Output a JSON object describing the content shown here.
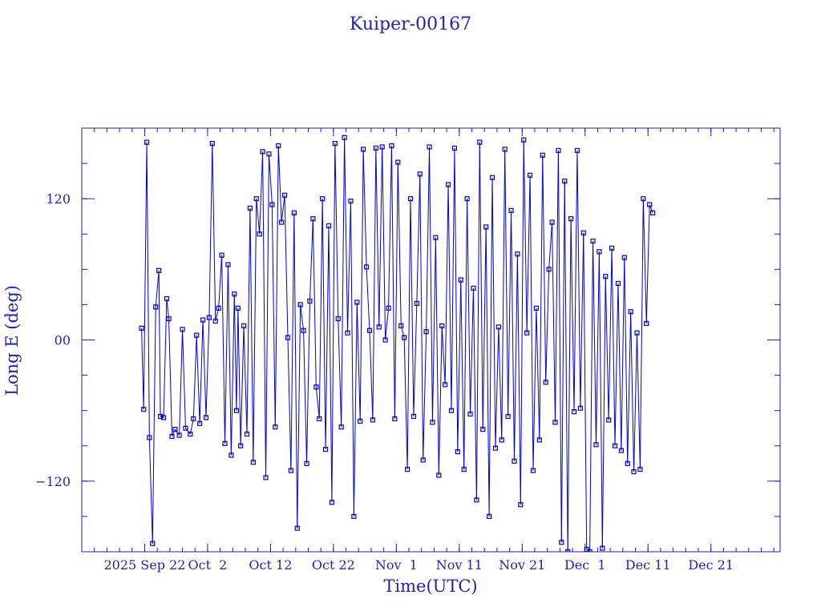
{
  "chart_data": {
    "type": "line",
    "title": "Kuiper-00167",
    "xlabel": "Time(UTC)",
    "ylabel": "Long E (deg)",
    "colors": {
      "axis": "#1f1fbf",
      "series": "#0000cc"
    },
    "x_axis": {
      "unit": "date",
      "range": [
        "2025-09-12",
        "2026-01-01"
      ],
      "major_ticks": [
        {
          "date": "2025-09-22",
          "label": "2025 Sep 22"
        },
        {
          "date": "2025-10-02",
          "label": "Oct  2"
        },
        {
          "date": "2025-10-12",
          "label": "Oct 12"
        },
        {
          "date": "2025-10-22",
          "label": "Oct 22"
        },
        {
          "date": "2025-11-01",
          "label": "Nov  1"
        },
        {
          "date": "2025-11-11",
          "label": "Nov 11"
        },
        {
          "date": "2025-11-21",
          "label": "Nov 21"
        },
        {
          "date": "2025-12-01",
          "label": "Dec  1"
        },
        {
          "date": "2025-12-11",
          "label": "Dec 11"
        },
        {
          "date": "2025-12-21",
          "label": "Dec 21"
        }
      ]
    },
    "y_axis": {
      "range": [
        -180,
        180
      ],
      "major_ticks": [
        {
          "value": 120,
          "label": "120"
        },
        {
          "value": 0,
          "label": "00"
        },
        {
          "value": -120,
          "label": "−120"
        }
      ],
      "minor_step": 30
    },
    "series": [
      {
        "values_note": "longitude wraps at ±180",
        "points": [
          [
            "2025-09-21T12:00",
            10
          ],
          [
            "2025-09-21T20:00",
            -59
          ],
          [
            "2025-09-22T08:00",
            168
          ],
          [
            "2025-09-22T18:00",
            -83
          ],
          [
            "2025-09-23T06:00",
            -173
          ],
          [
            "2025-09-23T18:00",
            28
          ],
          [
            "2025-09-24T06:00",
            59
          ],
          [
            "2025-09-24T12:00",
            -65
          ],
          [
            "2025-09-25T00:00",
            -66
          ],
          [
            "2025-09-25T12:00",
            35
          ],
          [
            "2025-09-25T20:00",
            18
          ],
          [
            "2025-09-26T08:00",
            -82
          ],
          [
            "2025-09-26T20:00",
            -76
          ],
          [
            "2025-09-27T12:00",
            -81
          ],
          [
            "2025-09-28T00:00",
            9
          ],
          [
            "2025-09-28T12:00",
            -75
          ],
          [
            "2025-09-29T06:00",
            -80
          ],
          [
            "2025-09-29T18:00",
            -67
          ],
          [
            "2025-09-30T06:00",
            4
          ],
          [
            "2025-09-30T18:00",
            -71
          ],
          [
            "2025-10-01T06:00",
            17
          ],
          [
            "2025-10-01T18:00",
            -66
          ],
          [
            "2025-10-02T06:00",
            19
          ],
          [
            "2025-10-02T18:00",
            167
          ],
          [
            "2025-10-03T06:00",
            16
          ],
          [
            "2025-10-03T18:00",
            27
          ],
          [
            "2025-10-04T06:00",
            72
          ],
          [
            "2025-10-04T18:00",
            -88
          ],
          [
            "2025-10-05T06:00",
            64
          ],
          [
            "2025-10-05T18:00",
            -98
          ],
          [
            "2025-10-06T06:00",
            39
          ],
          [
            "2025-10-06T14:00",
            -60
          ],
          [
            "2025-10-06T20:00",
            27
          ],
          [
            "2025-10-07T06:00",
            -90
          ],
          [
            "2025-10-07T18:00",
            12
          ],
          [
            "2025-10-08T06:00",
            -80
          ],
          [
            "2025-10-08T18:00",
            112
          ],
          [
            "2025-10-09T06:00",
            -104
          ],
          [
            "2025-10-09T18:00",
            120
          ],
          [
            "2025-10-10T06:00",
            90
          ],
          [
            "2025-10-10T18:00",
            160
          ],
          [
            "2025-10-11T06:00",
            -117
          ],
          [
            "2025-10-11T18:00",
            158
          ],
          [
            "2025-10-12T06:00",
            115
          ],
          [
            "2025-10-12T18:00",
            -74
          ],
          [
            "2025-10-13T06:00",
            165
          ],
          [
            "2025-10-13T18:00",
            100
          ],
          [
            "2025-10-14T06:00",
            123
          ],
          [
            "2025-10-14T18:00",
            2
          ],
          [
            "2025-10-15T06:00",
            -111
          ],
          [
            "2025-10-15T18:00",
            108
          ],
          [
            "2025-10-16T06:00",
            -160
          ],
          [
            "2025-10-16T18:00",
            30
          ],
          [
            "2025-10-17T06:00",
            8
          ],
          [
            "2025-10-17T18:00",
            -105
          ],
          [
            "2025-10-18T06:00",
            33
          ],
          [
            "2025-10-18T18:00",
            103
          ],
          [
            "2025-10-19T06:00",
            -40
          ],
          [
            "2025-10-19T18:00",
            -67
          ],
          [
            "2025-10-20T06:00",
            120
          ],
          [
            "2025-10-20T18:00",
            -93
          ],
          [
            "2025-10-21T06:00",
            97
          ],
          [
            "2025-10-21T18:00",
            -138
          ],
          [
            "2025-10-22T06:00",
            167
          ],
          [
            "2025-10-22T18:00",
            18
          ],
          [
            "2025-10-23T06:00",
            -74
          ],
          [
            "2025-10-23T18:00",
            172
          ],
          [
            "2025-10-24T06:00",
            6
          ],
          [
            "2025-10-24T18:00",
            118
          ],
          [
            "2025-10-25T06:00",
            -150
          ],
          [
            "2025-10-25T18:00",
            32
          ],
          [
            "2025-10-26T06:00",
            -69
          ],
          [
            "2025-10-26T18:00",
            162
          ],
          [
            "2025-10-27T06:00",
            62
          ],
          [
            "2025-10-27T18:00",
            8
          ],
          [
            "2025-10-28T06:00",
            -68
          ],
          [
            "2025-10-28T18:00",
            163
          ],
          [
            "2025-10-29T06:00",
            11
          ],
          [
            "2025-10-29T18:00",
            164
          ],
          [
            "2025-10-30T06:00",
            0
          ],
          [
            "2025-10-30T18:00",
            27
          ],
          [
            "2025-10-31T06:00",
            165
          ],
          [
            "2025-10-31T18:00",
            -67
          ],
          [
            "2025-11-01T06:00",
            151
          ],
          [
            "2025-11-01T18:00",
            12
          ],
          [
            "2025-11-02T06:00",
            2
          ],
          [
            "2025-11-02T18:00",
            -110
          ],
          [
            "2025-11-03T06:00",
            120
          ],
          [
            "2025-11-03T18:00",
            -65
          ],
          [
            "2025-11-04T06:00",
            31
          ],
          [
            "2025-11-04T18:00",
            141
          ],
          [
            "2025-11-05T06:00",
            -102
          ],
          [
            "2025-11-05T18:00",
            7
          ],
          [
            "2025-11-06T06:00",
            164
          ],
          [
            "2025-11-06T18:00",
            -70
          ],
          [
            "2025-11-07T06:00",
            87
          ],
          [
            "2025-11-07T18:00",
            -115
          ],
          [
            "2025-11-08T06:00",
            12
          ],
          [
            "2025-11-08T18:00",
            -38
          ],
          [
            "2025-11-09T06:00",
            132
          ],
          [
            "2025-11-09T18:00",
            -60
          ],
          [
            "2025-11-10T06:00",
            163
          ],
          [
            "2025-11-10T18:00",
            -95
          ],
          [
            "2025-11-11T06:00",
            51
          ],
          [
            "2025-11-11T18:00",
            -110
          ],
          [
            "2025-11-12T06:00",
            120
          ],
          [
            "2025-11-12T18:00",
            -63
          ],
          [
            "2025-11-13T06:00",
            44
          ],
          [
            "2025-11-13T18:00",
            -136
          ],
          [
            "2025-11-14T06:00",
            168
          ],
          [
            "2025-11-14T18:00",
            -76
          ],
          [
            "2025-11-15T06:00",
            96
          ],
          [
            "2025-11-15T18:00",
            -150
          ],
          [
            "2025-11-16T06:00",
            138
          ],
          [
            "2025-11-16T18:00",
            -92
          ],
          [
            "2025-11-17T06:00",
            11
          ],
          [
            "2025-11-17T18:00",
            -85
          ],
          [
            "2025-11-18T06:00",
            162
          ],
          [
            "2025-11-18T18:00",
            -65
          ],
          [
            "2025-11-19T06:00",
            110
          ],
          [
            "2025-11-19T18:00",
            -103
          ],
          [
            "2025-11-20T06:00",
            73
          ],
          [
            "2025-11-20T18:00",
            -140
          ],
          [
            "2025-11-21T06:00",
            170
          ],
          [
            "2025-11-21T18:00",
            6
          ],
          [
            "2025-11-22T06:00",
            140
          ],
          [
            "2025-11-22T18:00",
            -111
          ],
          [
            "2025-11-23T06:00",
            27
          ],
          [
            "2025-11-23T18:00",
            -85
          ],
          [
            "2025-11-24T06:00",
            157
          ],
          [
            "2025-11-24T18:00",
            -36
          ],
          [
            "2025-11-25T06:00",
            60
          ],
          [
            "2025-11-25T18:00",
            100
          ],
          [
            "2025-11-26T06:00",
            -70
          ],
          [
            "2025-11-26T18:00",
            161
          ],
          [
            "2025-11-27T06:00",
            -172
          ],
          [
            "2025-11-27T18:00",
            135
          ],
          [
            "2025-11-28T06:00",
            -180
          ],
          [
            "2025-11-28T18:00",
            103
          ],
          [
            "2025-11-29T06:00",
            -61
          ],
          [
            "2025-11-29T18:00",
            161
          ],
          [
            "2025-11-30T06:00",
            -58
          ],
          [
            "2025-11-30T18:00",
            91
          ],
          [
            "2025-12-01T06:00",
            -178
          ],
          [
            "2025-12-01T18:00",
            -180
          ],
          [
            "2025-12-02T06:00",
            84
          ],
          [
            "2025-12-02T18:00",
            -89
          ],
          [
            "2025-12-03T06:00",
            75
          ],
          [
            "2025-12-03T18:00",
            -177
          ],
          [
            "2025-12-04T06:00",
            54
          ],
          [
            "2025-12-04T18:00",
            -68
          ],
          [
            "2025-12-05T06:00",
            78
          ],
          [
            "2025-12-05T18:00",
            -90
          ],
          [
            "2025-12-06T06:00",
            48
          ],
          [
            "2025-12-06T18:00",
            -94
          ],
          [
            "2025-12-07T06:00",
            70
          ],
          [
            "2025-12-07T18:00",
            -105
          ],
          [
            "2025-12-08T06:00",
            24
          ],
          [
            "2025-12-08T18:00",
            -112
          ],
          [
            "2025-12-09T06:00",
            6
          ],
          [
            "2025-12-09T18:00",
            -110
          ],
          [
            "2025-12-10T06:00",
            120
          ],
          [
            "2025-12-10T18:00",
            14
          ],
          [
            "2025-12-11T06:00",
            115
          ],
          [
            "2025-12-11T18:00",
            108
          ]
        ]
      }
    ]
  }
}
